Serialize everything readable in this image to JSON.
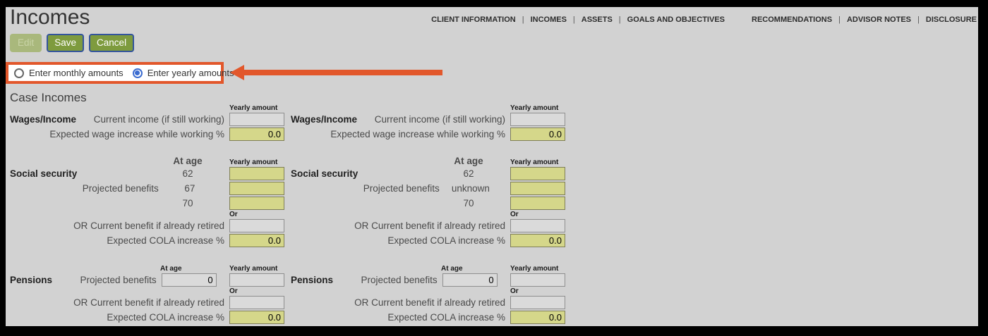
{
  "page": {
    "title": "Incomes"
  },
  "nav": {
    "separator": "|",
    "items": [
      "CLIENT INFORMATION",
      "INCOMES",
      "ASSETS",
      "GOALS AND OBJECTIVES",
      "RECOMMENDATIONS",
      "ADVISOR NOTES",
      "DISCLOSURE"
    ]
  },
  "toolbar": {
    "edit_label": "Edit",
    "save_label": "Save",
    "cancel_label": "Cancel"
  },
  "amount_mode": {
    "monthly_label": "Enter monthly amounts",
    "yearly_label": "Enter yearly amounts",
    "selected": "yearly"
  },
  "section": {
    "heading": "Case Incomes"
  },
  "colors": {
    "accent_orange": "#e2572b",
    "button_olive": "#7e9b3e",
    "button_border_blue": "#33549c",
    "input_yellow": "#d5d78a",
    "radio_blue": "#3a6bd0",
    "page_background": "#d2d2d2"
  },
  "panels": [
    {
      "wages": {
        "label": "Wages/Income",
        "amount_header": "Yearly amount",
        "current_income_label": "Current income (if still working)",
        "current_income_value": "",
        "increase_label": "Expected wage increase while working %",
        "increase_value": "0.0"
      },
      "social_security": {
        "label": "Social security",
        "age_header": "At age",
        "amount_header": "Yearly amount",
        "projected_label": "Projected benefits",
        "rows": [
          {
            "age": "62",
            "amount": ""
          },
          {
            "age": "67",
            "amount": ""
          },
          {
            "age": "70",
            "amount": ""
          }
        ],
        "or_header": "Or",
        "current_benefit_label": "OR Current benefit if already retired",
        "current_benefit_value": "",
        "cola_label": "Expected COLA increase %",
        "cola_value": "0.0"
      },
      "pensions": {
        "label": "Pensions",
        "age_header": "At age",
        "amount_header": "Yearly amount",
        "projected_label": "Projected benefits",
        "projected_age_value": "0",
        "projected_amount_value": "",
        "or_header": "Or",
        "current_benefit_label": "OR Current benefit if already retired",
        "current_benefit_value": "",
        "cola_label": "Expected COLA increase %",
        "cola_value": "0.0"
      }
    },
    {
      "wages": {
        "label": "Wages/Income",
        "amount_header": "Yearly amount",
        "current_income_label": "Current income (if still working)",
        "current_income_value": "",
        "increase_label": "Expected wage increase while working %",
        "increase_value": "0.0"
      },
      "social_security": {
        "label": "Social security",
        "age_header": "At age",
        "amount_header": "Yearly amount",
        "projected_label": "Projected benefits",
        "rows": [
          {
            "age": "62",
            "amount": ""
          },
          {
            "age": "unknown",
            "amount": ""
          },
          {
            "age": "70",
            "amount": ""
          }
        ],
        "or_header": "Or",
        "current_benefit_label": "OR Current benefit if already retired",
        "current_benefit_value": "",
        "cola_label": "Expected COLA increase %",
        "cola_value": "0.0"
      },
      "pensions": {
        "label": "Pensions",
        "age_header": "At age",
        "amount_header": "Yearly amount",
        "projected_label": "Projected benefits",
        "projected_age_value": "0",
        "projected_amount_value": "",
        "or_header": "Or",
        "current_benefit_label": "OR Current benefit if already retired",
        "current_benefit_value": "",
        "cola_label": "Expected COLA increase %",
        "cola_value": "0.0"
      }
    }
  ]
}
